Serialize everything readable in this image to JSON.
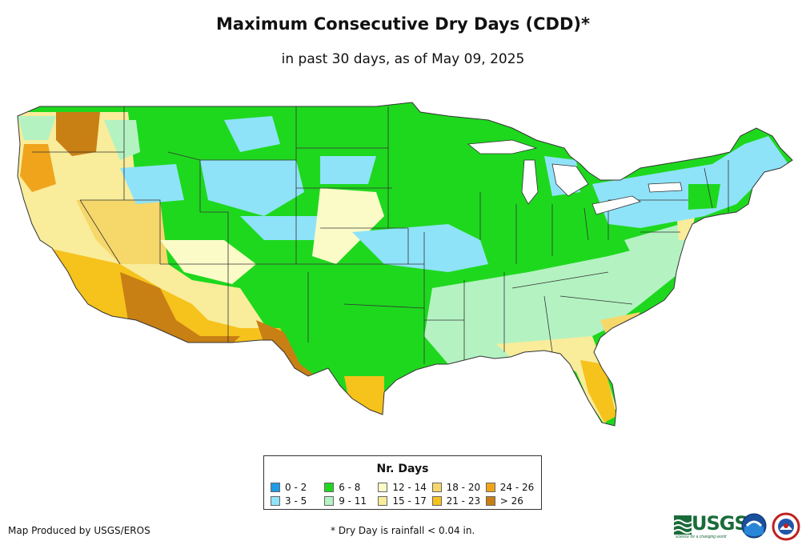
{
  "title": "Maximum Consecutive Dry Days (CDD)*",
  "subtitle": "in past 30 days, as of May 09, 2025",
  "legend": {
    "title": "Nr. Days",
    "items": [
      {
        "label": "0 - 2",
        "color": "#1f9be8"
      },
      {
        "label": "6 - 8",
        "color": "#1ed81e"
      },
      {
        "label": "12 - 14",
        "color": "#fbfbc8"
      },
      {
        "label": "18 - 20",
        "color": "#f6d76a"
      },
      {
        "label": "24 - 26",
        "color": "#f0a41c"
      },
      {
        "label": "3 - 5",
        "color": "#8ee3f8"
      },
      {
        "label": "9 - 11",
        "color": "#b4f2c2"
      },
      {
        "label": "15 - 17",
        "color": "#f9ec9a"
      },
      {
        "label": "21 - 23",
        "color": "#f6c21c"
      },
      {
        "label": "> 26",
        "color": "#c87f14"
      }
    ]
  },
  "footer": {
    "credit": "Map Produced by USGS/EROS",
    "note": "* Dry Day is rainfall < 0.04 in."
  },
  "logos": {
    "usgs": "USGS",
    "usgs_tagline": "science for a changing world"
  },
  "colors": {
    "state_border": "#333333",
    "water": "#ffffff"
  }
}
